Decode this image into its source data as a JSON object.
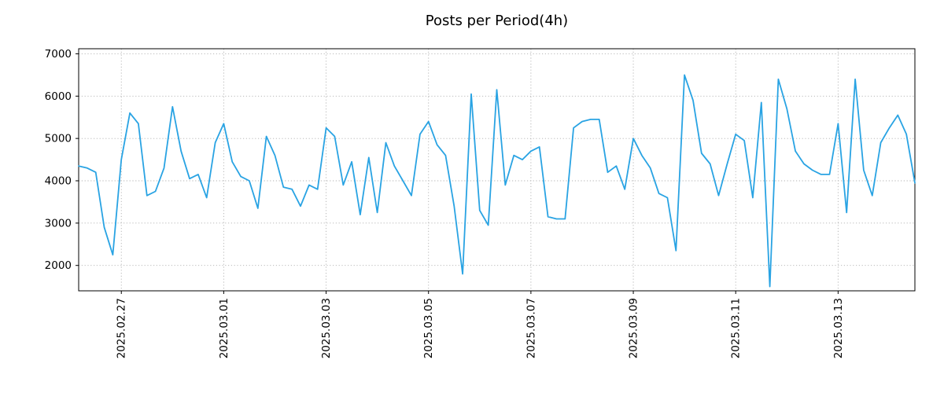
{
  "chart": {
    "title": "Posts per Period(4h)"
  },
  "chart_data": {
    "type": "line",
    "title": "Posts per Period(4h)",
    "xlabel": "",
    "ylabel": "",
    "period": "4h",
    "line_color": "#29a3e3",
    "grid": true,
    "grid_style": "dotted",
    "legend_position": "none",
    "ylim": [
      1400,
      7120
    ],
    "y_ticks": [
      2000,
      3000,
      4000,
      5000,
      6000,
      7000
    ],
    "x_tick_labels": [
      "2025.02.27",
      "2025.03.01",
      "2025.03.03",
      "2025.03.05",
      "2025.03.07",
      "2025.03.09",
      "2025.03.11",
      "2025.03.13"
    ],
    "x_tick_indices": [
      5,
      17,
      29,
      41,
      53,
      65,
      77,
      89
    ],
    "values": [
      4350,
      4300,
      4200,
      2900,
      2250,
      4500,
      5600,
      5350,
      3650,
      3750,
      4300,
      5750,
      4700,
      4050,
      4150,
      3600,
      4900,
      5350,
      4450,
      4100,
      4000,
      3350,
      5050,
      4600,
      3850,
      3800,
      3400,
      3900,
      3800,
      5250,
      5050,
      3900,
      4450,
      3200,
      4550,
      3250,
      4900,
      4350,
      4000,
      3650,
      5100,
      5400,
      4850,
      4600,
      3400,
      1800,
      6050,
      3300,
      2950,
      6150,
      3900,
      4600,
      4500,
      4700,
      4800,
      3150,
      3100,
      3100,
      5250,
      5400,
      5450,
      5450,
      4200,
      4350,
      3800,
      5000,
      4600,
      4300,
      3700,
      3600,
      2350,
      6500,
      5900,
      4650,
      4400,
      3650,
      4400,
      5100,
      4950,
      3600,
      5850,
      1500,
      6400,
      5700,
      4700,
      4400,
      4250,
      4150,
      4150,
      5350,
      3250,
      6400,
      4250,
      3650,
      4900,
      5250,
      5550,
      5100,
      3950
    ]
  }
}
